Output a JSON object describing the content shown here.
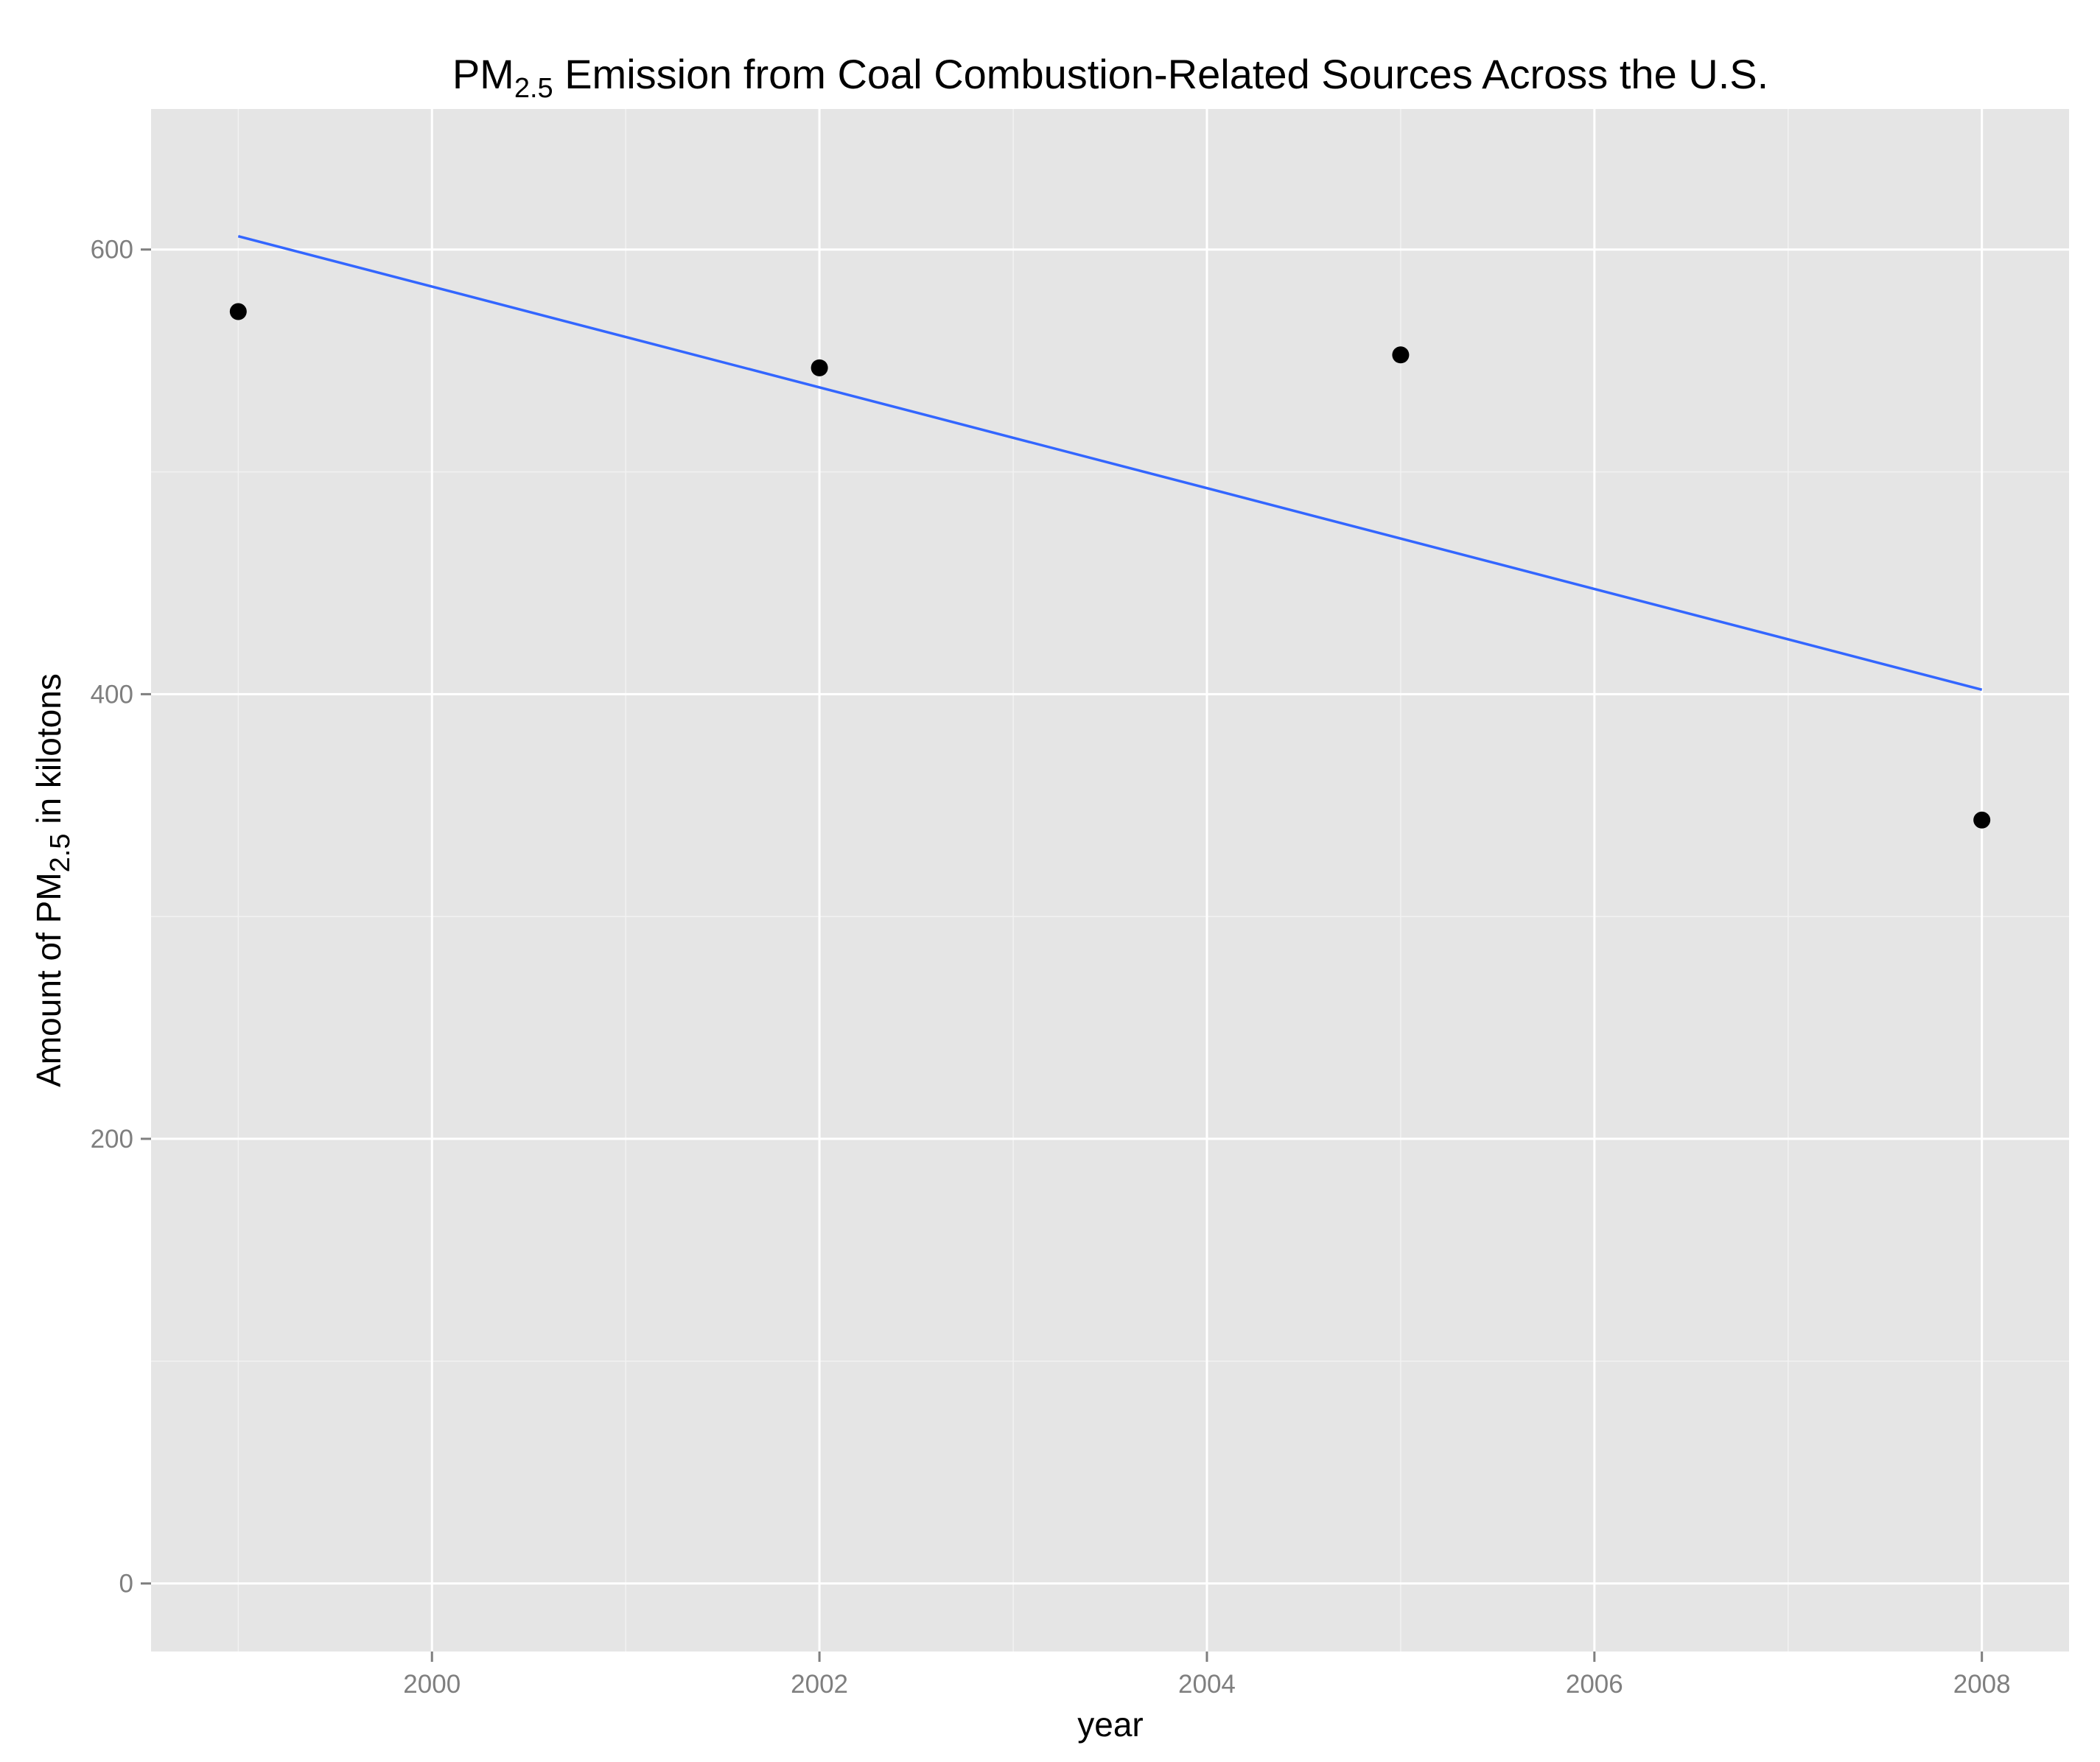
{
  "chart_data": {
    "type": "scatter",
    "title": {
      "pre": "PM",
      "sub": "2.5",
      "post": " Emission from Coal Combustion-Related Sources Across the U.S."
    },
    "xlabel": "year",
    "ylabel": {
      "pre": "Amount of PM",
      "sub": "2.5",
      "post": " in kilotons"
    },
    "x_ticks": [
      2000,
      2002,
      2004,
      2006,
      2008
    ],
    "y_ticks": [
      0,
      200,
      400,
      600
    ],
    "xlim": [
      1998.55,
      2008.45
    ],
    "ylim": [
      -30.6,
      663.2
    ],
    "grid": true,
    "points": [
      {
        "x": 1999,
        "y": 572.1
      },
      {
        "x": 2002,
        "y": 546.8
      },
      {
        "x": 2005,
        "y": 552.6
      },
      {
        "x": 2008,
        "y": 343.4
      }
    ],
    "trend_line": {
      "color": "#3366ff",
      "start": {
        "x": 1999,
        "y": 606.0
      },
      "end": {
        "x": 2008,
        "y": 402.0
      }
    },
    "colors": {
      "panel": "#e5e5e5",
      "grid_major": "#ffffff",
      "grid_minor": "#f2f2f2",
      "point": "#000000",
      "tick_label": "#7f7f7f"
    }
  }
}
